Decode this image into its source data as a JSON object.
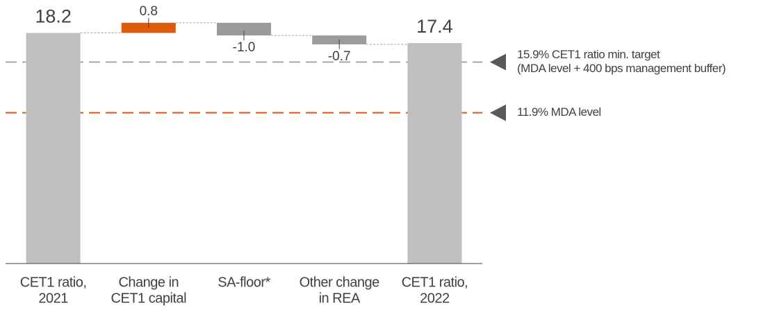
{
  "chart_data": {
    "type": "waterfall",
    "categories": [
      [
        "CET1 ratio,",
        "2021"
      ],
      [
        "Change in",
        "CET1 capital"
      ],
      [
        "SA-floor*"
      ],
      [
        "Other change",
        "in REA"
      ],
      [
        "CET1 ratio,",
        "2022"
      ]
    ],
    "measure": [
      "total",
      "relative",
      "relative",
      "relative",
      "total"
    ],
    "values": [
      18.2,
      0.8,
      -1.0,
      -0.7,
      17.4
    ],
    "value_labels": [
      "18.2",
      "0.8",
      "-1.0",
      "-0.7",
      "17.4"
    ],
    "colors": {
      "total": "#bfbfbf",
      "increase": "#e05a0c",
      "decrease": "#9b9b9b"
    },
    "ylim": [
      0,
      20.8
    ],
    "reference_lines": [
      {
        "value": 15.9,
        "color": "#a6a6a6",
        "label": [
          "15.9% CET1 ratio min. target",
          "(MDA level + 400 bps management buffer)"
        ]
      },
      {
        "value": 11.9,
        "color": "#e05a0c",
        "label": [
          "11.9% MDA level"
        ]
      }
    ]
  }
}
